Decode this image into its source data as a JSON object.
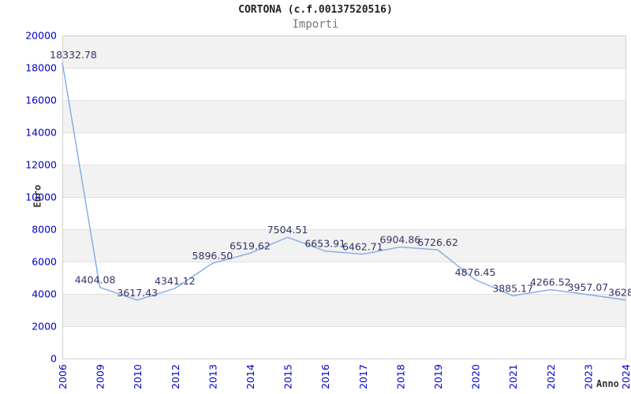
{
  "chart_data": {
    "type": "line",
    "title": "CORTONA (c.f.00137520516)",
    "subtitle": "Importi",
    "xlabel": "Anno",
    "ylabel": "Euro",
    "categories": [
      "2006",
      "2009",
      "2010",
      "2012",
      "2013",
      "2014",
      "2015",
      "2016",
      "2017",
      "2018",
      "2019",
      "2020",
      "2021",
      "2022",
      "2023",
      "2024"
    ],
    "values": [
      18332.78,
      4404.08,
      3617.43,
      4341.12,
      5896.5,
      6519.62,
      7504.51,
      6653.91,
      6462.71,
      6904.86,
      6726.62,
      4876.45,
      3885.17,
      4266.52,
      3957.07,
      3628.0
    ],
    "point_labels": [
      "18332.78",
      "4404.08",
      "3617.43",
      "4341.12",
      "5896.50",
      "6519.62",
      "7504.51",
      "6653.91",
      "6462.71",
      "6904.86",
      "6726.62",
      "4876.45",
      "3885.17",
      "4266.52",
      "3957.07",
      "3628.0"
    ],
    "ylim": [
      0,
      20000
    ],
    "ytick_step": 2000,
    "grid": "horizontal-bands-alternating",
    "legend": "none",
    "x_axis_rotation": -90,
    "label_dx": [
      14,
      -6,
      0,
      0,
      0,
      0,
      0,
      0,
      0,
      0,
      0,
      0,
      0,
      0,
      0,
      0
    ],
    "colors": {
      "line": "#7FACE8",
      "tick_label": "#0000CC",
      "data_label": "#333366",
      "band": "#F2F2F2",
      "grid": "#E0E0E0",
      "border": "#CFCFCF",
      "title": "#222222",
      "subtitle": "#777777",
      "axis_title": "#333333"
    }
  }
}
